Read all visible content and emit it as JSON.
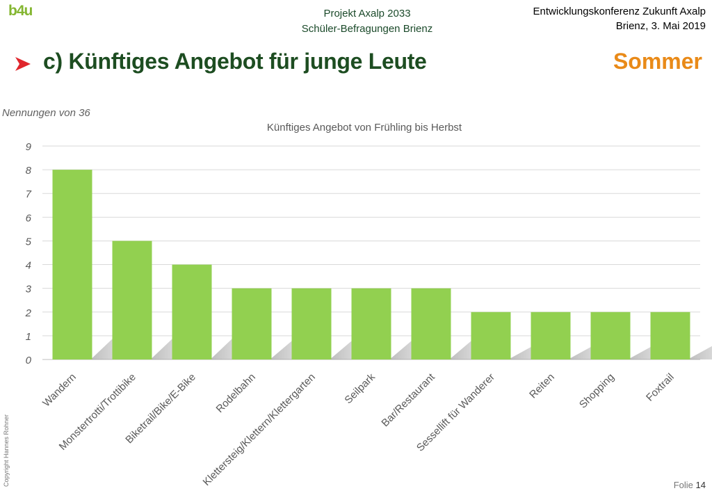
{
  "header": {
    "logo_text": "b4u",
    "project_line1": "Projekt Axalp 2033",
    "project_line2": "Schüler-Befragungen Brienz",
    "conference_line1": "Entwicklungskonferenz Zukunft Axalp",
    "conference_line2": "Brienz, 3. Mai 2019"
  },
  "slide": {
    "title": "c) Künftiges Angebot für junge Leute",
    "season": "Sommer",
    "note": "Nennungen von 36",
    "copyright": "Copyright Hannes Rohner",
    "folio_label": "Folie",
    "folio_number": "14"
  },
  "colors": {
    "bar": "#92d050",
    "title": "#1d4d21",
    "season": "#e98a18",
    "arrow": "#e0262c"
  },
  "chart_data": {
    "type": "bar",
    "title": "Künftiges Angebot von Frühling bis Herbst",
    "xlabel": "",
    "ylabel": "",
    "ylim": [
      0,
      9
    ],
    "yticks": [
      0,
      1,
      2,
      3,
      4,
      5,
      6,
      7,
      8,
      9
    ],
    "grid": true,
    "categories": [
      "Wandern",
      "Monstertrotti/Trottibike",
      "Biketrail/Bike/E-Bike",
      "Rodelbahn",
      "Klettersteig/Klettern/Klettergarten",
      "Seilpark",
      "Bar/Restaurant",
      "Sessellift für Wanderer",
      "Reiten",
      "Shopping",
      "Foxtrail"
    ],
    "values": [
      8,
      5,
      4,
      3,
      3,
      3,
      3,
      2,
      2,
      2,
      2
    ]
  }
}
